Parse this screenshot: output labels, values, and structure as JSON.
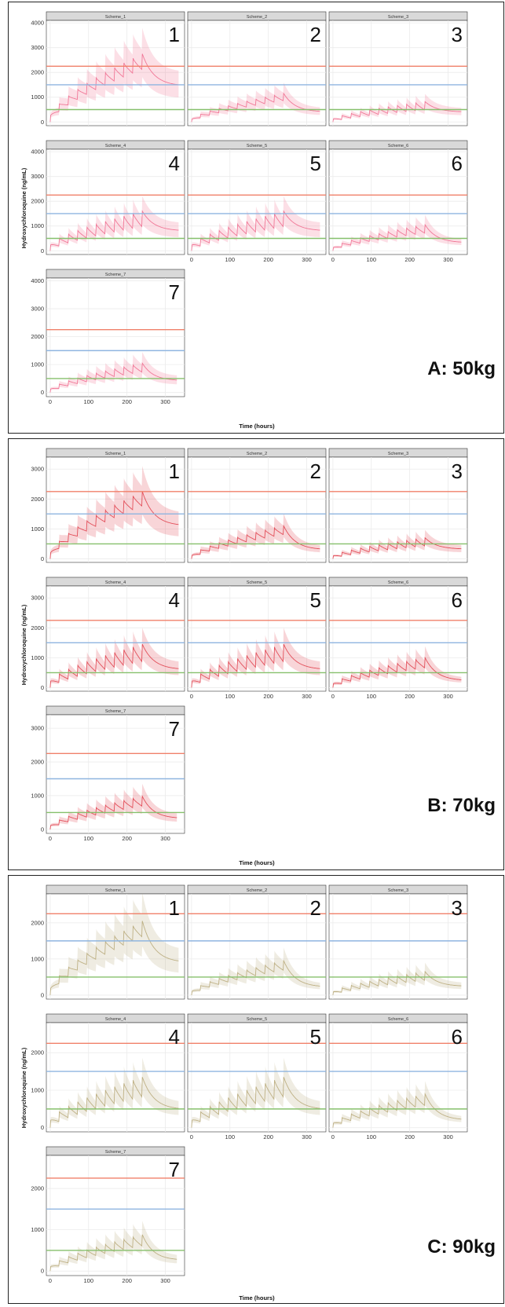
{
  "colors": {
    "frame": "#222222",
    "grid": "#ebebeb",
    "strip_fill": "#d9d9d9",
    "strip_stroke": "#333333",
    "panel_border": "#333333",
    "ref_high": "#f0806a",
    "ref_mid": "#8fb5e0",
    "ref_low": "#86c06c",
    "series_a": "#f06c8e",
    "series_b": "#e0404c",
    "series_c": "#b8aa7a"
  },
  "chart_data": [
    {
      "type": "line",
      "title": "A: 50kg",
      "xlabel": "Time (hours)",
      "ylabel": "Hydroxychloroquine (ng/mL)",
      "xlim": [
        -10,
        350
      ],
      "ylim": [
        -150,
        4100
      ],
      "xticks": [
        0,
        100,
        200,
        300
      ],
      "yticks": [
        0,
        1000,
        2000,
        3000,
        4000
      ],
      "reference_lines": [
        2250,
        1500,
        500
      ],
      "grid": true,
      "panels": [
        {
          "strip": "Scheme_1",
          "number": "1",
          "end": 335,
          "peak": 2750,
          "trough": 2100,
          "tail": 1450
        },
        {
          "strip": "Scheme_2",
          "number": "2",
          "end": 335,
          "peak": 1150,
          "trough": 850,
          "tail": 400
        },
        {
          "strip": "Scheme_3",
          "number": "3",
          "end": 335,
          "peak": 820,
          "trough": 480,
          "tail": 400
        },
        {
          "strip": "Scheme_4",
          "number": "4",
          "end": 335,
          "peak": 1600,
          "trough": 950,
          "tail": 800
        },
        {
          "strip": "Scheme_5",
          "number": "5",
          "end": 335,
          "peak": 1600,
          "trough": 950,
          "tail": 800
        },
        {
          "strip": "Scheme_6",
          "number": "6",
          "end": 335,
          "peak": 1050,
          "trough": 700,
          "tail": 320
        },
        {
          "strip": "Scheme_7",
          "number": "7",
          "end": 330,
          "peak": 1050,
          "trough": 720,
          "tail": 420
        }
      ]
    },
    {
      "type": "line",
      "title": "B: 70kg",
      "xlabel": "Time (hours)",
      "ylabel": "Hydroxychloroquine (ng/mL)",
      "xlim": [
        -10,
        350
      ],
      "ylim": [
        -120,
        3400
      ],
      "xticks": [
        0,
        100,
        200,
        300
      ],
      "yticks": [
        0,
        1000,
        2000,
        3000
      ],
      "reference_lines": [
        2250,
        1500,
        500
      ],
      "grid": true,
      "panels": [
        {
          "strip": "Scheme_1",
          "number": "1",
          "end": 335,
          "peak": 2250,
          "trough": 1750,
          "tail": 1100
        },
        {
          "strip": "Scheme_2",
          "number": "2",
          "end": 335,
          "peak": 1100,
          "trough": 800,
          "tail": 300
        },
        {
          "strip": "Scheme_3",
          "number": "3",
          "end": 335,
          "peak": 700,
          "trough": 420,
          "tail": 320
        },
        {
          "strip": "Scheme_4",
          "number": "4",
          "end": 335,
          "peak": 1450,
          "trough": 850,
          "tail": 600
        },
        {
          "strip": "Scheme_5",
          "number": "5",
          "end": 335,
          "peak": 1450,
          "trough": 850,
          "tail": 600
        },
        {
          "strip": "Scheme_6",
          "number": "6",
          "end": 335,
          "peak": 1000,
          "trough": 650,
          "tail": 230
        },
        {
          "strip": "Scheme_7",
          "number": "7",
          "end": 330,
          "peak": 980,
          "trough": 680,
          "tail": 320
        }
      ]
    },
    {
      "type": "line",
      "title": "C: 90kg",
      "xlabel": "Time (hours)",
      "ylabel": "Hydroxychloroquine (ng/mL)",
      "xlim": [
        -10,
        350
      ],
      "ylim": [
        -110,
        2800
      ],
      "xticks": [
        0,
        100,
        200,
        300
      ],
      "yticks": [
        0,
        1000,
        2000
      ],
      "reference_lines": [
        2250,
        1500,
        500
      ],
      "grid": true,
      "panels": [
        {
          "strip": "Scheme_1",
          "number": "1",
          "end": 335,
          "peak": 2050,
          "trough": 1600,
          "tail": 900
        },
        {
          "strip": "Scheme_2",
          "number": "2",
          "end": 335,
          "peak": 950,
          "trough": 680,
          "tail": 220
        },
        {
          "strip": "Scheme_3",
          "number": "3",
          "end": 335,
          "peak": 650,
          "trough": 400,
          "tail": 240
        },
        {
          "strip": "Scheme_4",
          "number": "4",
          "end": 335,
          "peak": 1350,
          "trough": 800,
          "tail": 480
        },
        {
          "strip": "Scheme_5",
          "number": "5",
          "end": 335,
          "peak": 1350,
          "trough": 800,
          "tail": 480
        },
        {
          "strip": "Scheme_6",
          "number": "6",
          "end": 335,
          "peak": 900,
          "trough": 580,
          "tail": 200
        },
        {
          "strip": "Scheme_7",
          "number": "7",
          "end": 330,
          "peak": 880,
          "trough": 600,
          "tail": 260
        }
      ]
    }
  ]
}
